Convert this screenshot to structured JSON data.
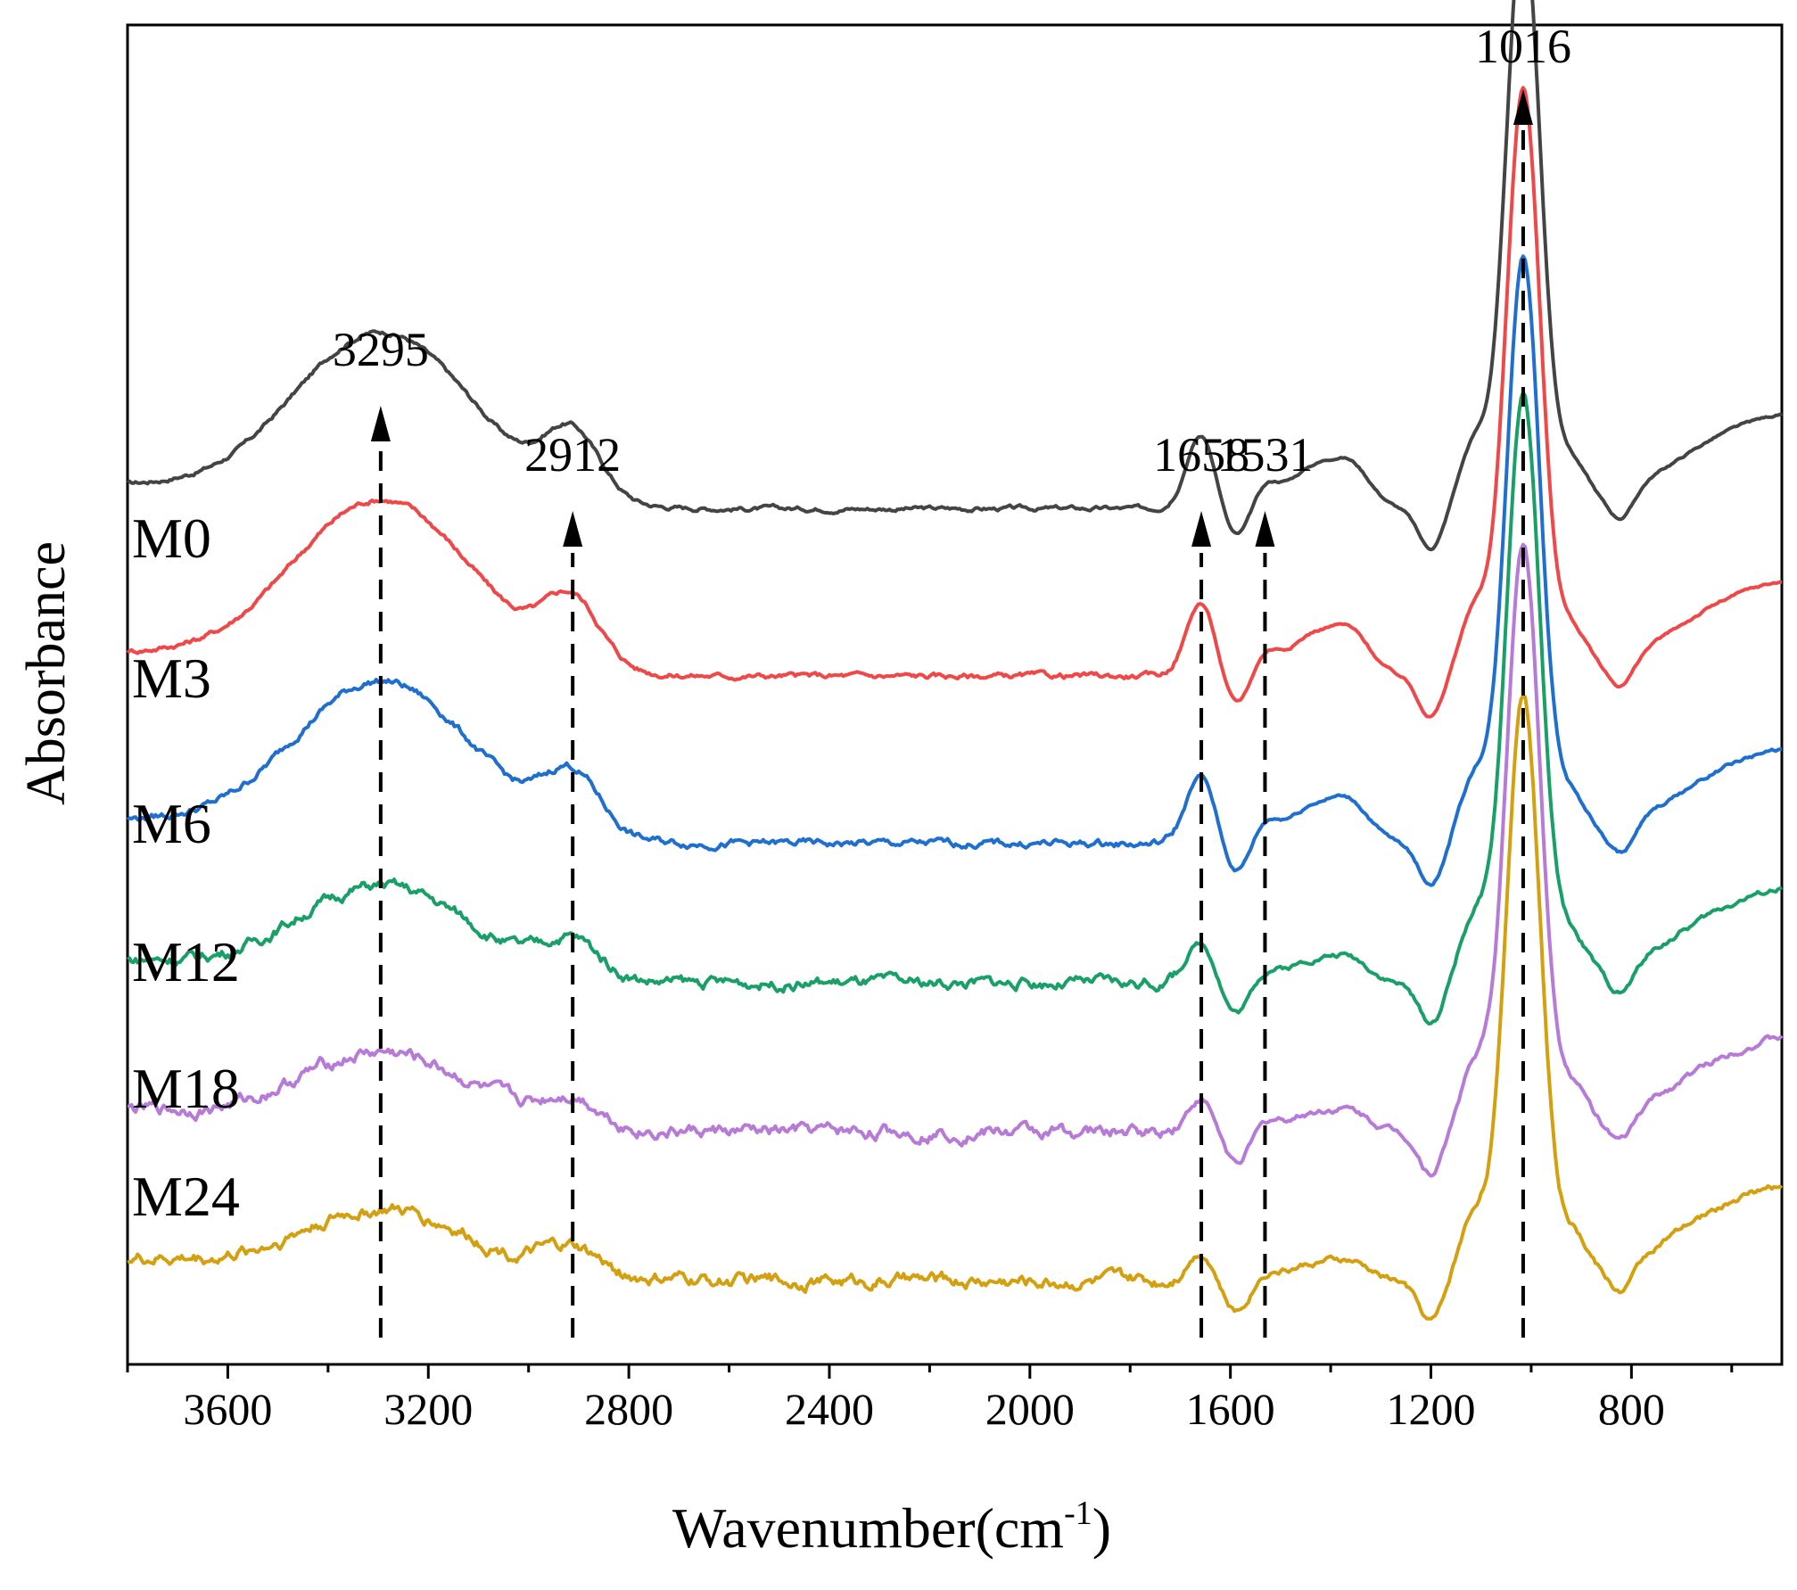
{
  "chart_data": {
    "type": "line",
    "title": "",
    "xlabel": "Wavenumber(cm",
    "xlabel_sup": "-1",
    "xlabel_close": ")",
    "ylabel": "Absorbance",
    "xlim": [
      3800,
      500
    ],
    "x_reversed": true,
    "x_ticks": [
      3600,
      3200,
      2800,
      2400,
      2000,
      1600,
      1200,
      800
    ],
    "x_minor_step": 200,
    "y_ticks": false,
    "ylim": [
      0,
      7.2
    ],
    "series": [
      {
        "name": "M0",
        "color": "#444444",
        "offset": 4.6,
        "strength": 1.0,
        "noise": 0.012,
        "x": [
          3800,
          3295,
          2912,
          1658,
          1531,
          1016,
          500
        ]
      },
      {
        "name": "M3",
        "color": "#f04848",
        "offset": 3.7,
        "strength": 1.0,
        "noise": 0.015,
        "x": [
          3800,
          3295,
          2912,
          1658,
          1531,
          1016,
          500
        ]
      },
      {
        "name": "M6",
        "color": "#1f6fd1",
        "offset": 2.8,
        "strength": 0.92,
        "noise": 0.02,
        "x": [
          3800,
          3295,
          2912,
          1658,
          1531,
          1016,
          500
        ]
      },
      {
        "name": "M12",
        "color": "#18a068",
        "offset": 2.05,
        "strength": 0.55,
        "noise": 0.03,
        "x": [
          3800,
          3295,
          2912,
          1658,
          1531,
          1016,
          500
        ]
      },
      {
        "name": "M18",
        "color": "#b87ad8",
        "offset": 1.25,
        "strength": 0.45,
        "noise": 0.035,
        "x": [
          3800,
          3295,
          2912,
          1658,
          1531,
          1016,
          500
        ]
      },
      {
        "name": "M24",
        "color": "#d4a010",
        "offset": 0.45,
        "strength": 0.4,
        "noise": 0.035,
        "x": [
          3800,
          3295,
          2912,
          1658,
          1531,
          1016,
          500
        ]
      }
    ],
    "annotations": [
      {
        "label": "3295",
        "x": 3295
      },
      {
        "label": "2912",
        "x": 2912
      },
      {
        "label": "1658",
        "x": 1658
      },
      {
        "label": "1531",
        "x": 1531
      },
      {
        "label": "1016",
        "x": 1016
      }
    ]
  }
}
